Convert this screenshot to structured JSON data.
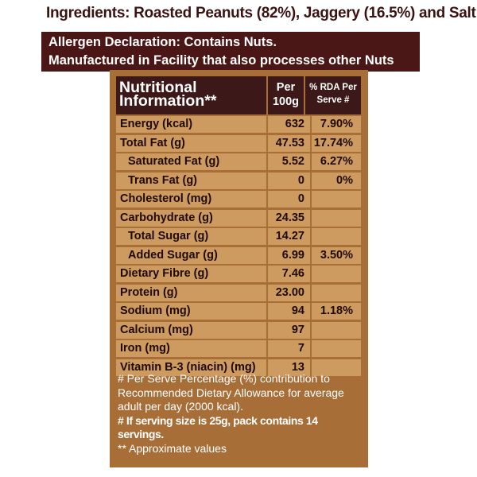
{
  "ingredients": "Ingredients: Roasted Peanuts (82%), Jaggery (16.5%) and Salt",
  "allergen": {
    "line1": "Allergen Declaration: Contains Nuts.",
    "line2": "Manufactured in Facility that also processes other Nuts"
  },
  "table": {
    "header": {
      "title_line1": "Nutritional",
      "title_line2": "Information**",
      "per_line1": "Per",
      "per_line2": "100g",
      "rda_line1": "% RDA Per",
      "rda_line2": "Serve #"
    },
    "rows": [
      {
        "name": "Energy (kcal)",
        "per100g": "632",
        "rda": "7.90%",
        "indent": false
      },
      {
        "name": "Total Fat (g)",
        "per100g": "47.53",
        "rda": "17.74%",
        "indent": false
      },
      {
        "name": "Saturated Fat (g)",
        "per100g": "5.52",
        "rda": "6.27%",
        "indent": true
      },
      {
        "name": "Trans Fat (g)",
        "per100g": "0",
        "rda": "0%",
        "indent": true
      },
      {
        "name": "Cholesterol (mg)",
        "per100g": "0",
        "rda": "",
        "indent": false
      },
      {
        "name": "Carbohydrate (g)",
        "per100g": "24.35",
        "rda": "",
        "indent": false
      },
      {
        "name": "Total Sugar (g)",
        "per100g": "14.27",
        "rda": "",
        "indent": true
      },
      {
        "name": "Added Sugar (g)",
        "per100g": "6.99",
        "rda": "3.50%",
        "indent": true
      },
      {
        "name": "Dietary Fibre (g)",
        "per100g": "7.46",
        "rda": "",
        "indent": false
      },
      {
        "name": "Protein (g)",
        "per100g": "23.00",
        "rda": "",
        "indent": false
      },
      {
        "name": "Sodium (mg)",
        "per100g": "94",
        "rda": "1.18%",
        "indent": false
      },
      {
        "name": "Calcium (mg)",
        "per100g": "97",
        "rda": "",
        "indent": false
      },
      {
        "name": "Iron (mg)",
        "per100g": "7",
        "rda": "",
        "indent": false
      },
      {
        "name": "Vitamin B-3 (niacin) (mg)",
        "per100g": "13",
        "rda": "",
        "indent": false
      }
    ]
  },
  "footnotes": {
    "rda_note": "# Per Serve Percentage (%) contribution to Recommended Dietary Allowance for average adult per day (2000 kcal).",
    "serving_note": "# If serving size is 25g, pack contains 14 servings.",
    "approx_note": "** Approximate values"
  },
  "colors": {
    "panel": "#a86e38",
    "cell": "#cd9a5f",
    "header": "#3c1818",
    "allergen_bg": "#4a1616"
  }
}
